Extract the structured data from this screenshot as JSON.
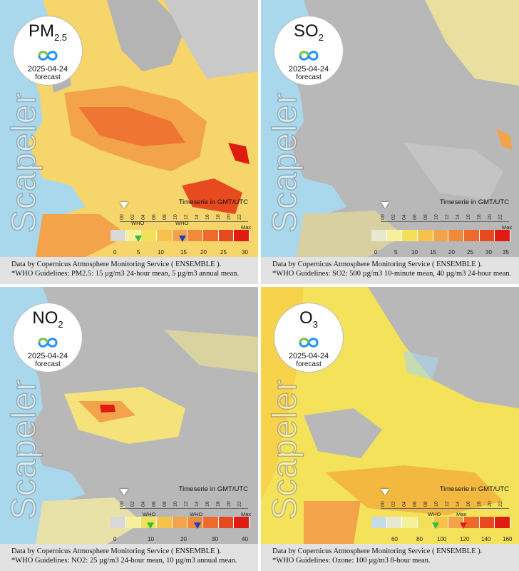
{
  "panels": [
    {
      "pollutant": "PM",
      "pollutant_sub": "2.5",
      "date": "2025-04-24",
      "forecast_label": "forecast",
      "brand": "Scapeler",
      "timeseries_label": "Timeserie in GMT/UTC",
      "timeline_ticks": [
        "00",
        "02",
        "04",
        "06",
        "08",
        "10",
        "12",
        "14",
        "16",
        "18",
        "20",
        "22"
      ],
      "scale_ticks": [
        "0",
        "5",
        "10",
        "15",
        "20",
        "25",
        "30"
      ],
      "who_label": "WHO",
      "max_label": "Max",
      "caption_line1": "Data by Copernicus Atmosphere Monitoring Service ( ENSEMBLE ).",
      "caption_line2": "*WHO Guidelines: PM2.5: 15 µg/m3 24-hour mean, 5 µg/m3 annual mean."
    },
    {
      "pollutant": "SO",
      "pollutant_sub": "2",
      "date": "2025-04-24",
      "forecast_label": "forecast",
      "brand": "Scapeler",
      "timeseries_label": "Timeserie in GMT/UTC",
      "timeline_ticks": [
        "00",
        "02",
        "04",
        "06",
        "08",
        "10",
        "12",
        "14",
        "16",
        "18",
        "20",
        "22"
      ],
      "scale_ticks": [
        "0",
        "5",
        "10",
        "15",
        "20",
        "25",
        "30",
        "35"
      ],
      "max_label": "Max",
      "caption_line1": "Data by Copernicus Atmosphere Monitoring Service ( ENSEMBLE ).",
      "caption_line2": "*WHO Guidelines: SO2: 500 µg/m3 10-minute mean, 40 µg/m3 24-hour mean."
    },
    {
      "pollutant": "NO",
      "pollutant_sub": "2",
      "date": "2025-04-24",
      "forecast_label": "forecast",
      "brand": "Scapeler",
      "timeseries_label": "Timeserie in GMT/UTC",
      "timeline_ticks": [
        "00",
        "02",
        "04",
        "06",
        "08",
        "10",
        "12",
        "14",
        "16",
        "18",
        "20",
        "22"
      ],
      "scale_ticks": [
        "0",
        "10",
        "20",
        "30",
        "40"
      ],
      "who_label": "WHO",
      "max_label": "Max",
      "caption_line1": "Data by Copernicus Atmosphere Monitoring Service ( ENSEMBLE ).",
      "caption_line2": "*WHO Guidelines: NO2: 25 µg/m3 24-hour mean, 10 µg/m3 annual mean."
    },
    {
      "pollutant": "O",
      "pollutant_sub": "3",
      "date": "2025-04-24",
      "forecast_label": "forecast",
      "brand": "Scapeler",
      "timeseries_label": "Timeserie in GMT/UTC",
      "timeline_ticks": [
        "00",
        "02",
        "04",
        "06",
        "08",
        "10",
        "12",
        "14",
        "16",
        "18",
        "20",
        "22"
      ],
      "scale_ticks": [
        "60",
        "80",
        "100",
        "120",
        "140",
        "160"
      ],
      "who_label": "WHO",
      "max_label": "Max",
      "caption_line1": "Data by Copernicus Atmosphere Monitoring Service ( ENSEMBLE ).",
      "caption_line2": "*WHO Guidelines: Ozone: 100 µg/m3 8-hour mean."
    }
  ],
  "colors": {
    "sea": "#a9d7ec",
    "land_gray": "#b4b4b4",
    "low": "#f7f09a",
    "mid": "#f6c24a",
    "high": "#ee6a2c",
    "max": "#e01c12",
    "who_green": "#2ec02e",
    "who_blue": "#1c3fc4"
  }
}
